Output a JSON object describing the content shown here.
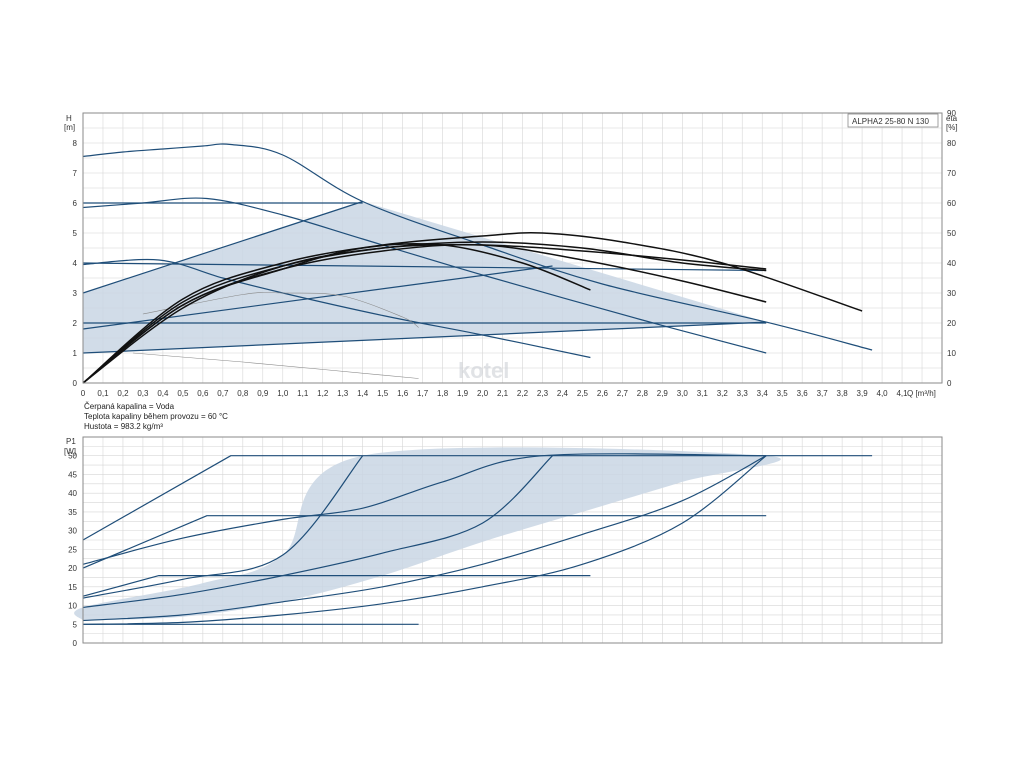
{
  "colors": {
    "line": "#1f4e79",
    "fill": "#c9d6e4",
    "eta": "#111111",
    "grid": "#d6d6d6",
    "frame": "#8a8a8a",
    "thin": "#888888"
  },
  "fluid_info": {
    "line1": "Čerpaná kapalina = Voda",
    "line2": "Teplota kapaliny během provozu = 60 °C",
    "line3": "Hustota = 983.2 kg/m³"
  },
  "watermark": "kotel",
  "chart_data": [
    {
      "type": "line",
      "title": "ALPHA2 25-80 N 130",
      "xlabel": "Q [m³/h]",
      "ylabel_top": "H",
      "ylabel_unit": "[m]",
      "y2label_top": "eta",
      "y2label_unit": "[%]",
      "xlim": [
        0,
        4.3
      ],
      "ylim": [
        0,
        9
      ],
      "y2lim": [
        0,
        90
      ],
      "grid": true,
      "x_ticks": [
        "0",
        "0,1",
        "0,2",
        "0,3",
        "0,4",
        "0,5",
        "0,6",
        "0,7",
        "0,8",
        "0,9",
        "1,0",
        "1,1",
        "1,2",
        "1,3",
        "1,4",
        "1,5",
        "1,6",
        "1,7",
        "1,8",
        "1,9",
        "2,0",
        "2,1",
        "2,2",
        "2,3",
        "2,4",
        "2,5",
        "2,6",
        "2,7",
        "2,8",
        "2,9",
        "3,0",
        "3,1",
        "3,2",
        "3,3",
        "3,4",
        "3,5",
        "3,6",
        "3,7",
        "3,8",
        "3,9",
        "4,0",
        "4,1"
      ],
      "y_ticks": [
        "0",
        "1",
        "2",
        "3",
        "4",
        "5",
        "6",
        "7",
        "8"
      ],
      "y2_ticks": [
        "0",
        "10",
        "20",
        "30",
        "40",
        "50",
        "60",
        "70",
        "80",
        "90"
      ],
      "shaded_region": [
        [
          0,
          1
        ],
        [
          0,
          3
        ],
        [
          1.4,
          6.05
        ],
        [
          3.42,
          2.03
        ],
        [
          0,
          1
        ]
      ],
      "series": [
        {
          "kind": "head",
          "points": [
            [
              0,
              7.55
            ],
            [
              0.2,
              7.7
            ],
            [
              0.4,
              7.8
            ],
            [
              0.6,
              7.9
            ],
            [
              0.74,
              7.95
            ],
            [
              1.0,
              7.6
            ],
            [
              1.4,
              6.05
            ],
            [
              2.0,
              4.6
            ],
            [
              2.6,
              3.3
            ],
            [
              3.42,
              2.03
            ],
            [
              3.95,
              1.1
            ]
          ]
        },
        {
          "kind": "head",
          "points": [
            [
              0,
              5.85
            ],
            [
              0.3,
              6.0
            ],
            [
              0.62,
              6.15
            ],
            [
              1.0,
              5.6
            ],
            [
              1.4,
              4.8
            ],
            [
              2.0,
              3.6
            ],
            [
              2.8,
              2.1
            ],
            [
              3.42,
              1.0
            ]
          ]
        },
        {
          "kind": "head",
          "points": [
            [
              0,
              3.95
            ],
            [
              0.38,
              4.1
            ],
            [
              0.7,
              3.5
            ],
            [
              1.0,
              3.0
            ],
            [
              1.5,
              2.25
            ],
            [
              2.0,
              1.6
            ],
            [
              2.54,
              0.85
            ]
          ]
        },
        {
          "kind": "head",
          "points": [
            [
              0,
              3.0
            ],
            [
              1.4,
              6.05
            ]
          ]
        },
        {
          "kind": "head",
          "points": [
            [
              0,
              1.8
            ],
            [
              2.35,
              3.9
            ]
          ]
        },
        {
          "kind": "head",
          "points": [
            [
              0,
              1.0
            ],
            [
              3.42,
              2.03
            ]
          ]
        },
        {
          "kind": "head",
          "points": [
            [
              0,
              6.0
            ],
            [
              1.4,
              6.0
            ]
          ]
        },
        {
          "kind": "head",
          "points": [
            [
              0,
              4.0
            ],
            [
              3.42,
              3.75
            ]
          ]
        },
        {
          "kind": "head",
          "points": [
            [
              0,
              2.0
            ],
            [
              3.42,
              2.0
            ]
          ]
        },
        {
          "kind": "thin",
          "points": [
            [
              0.3,
              2.3
            ],
            [
              0.8,
              2.95
            ],
            [
              1.0,
              3.0
            ],
            [
              1.3,
              2.9
            ],
            [
              1.6,
              2.2
            ],
            [
              1.68,
              1.85
            ]
          ]
        },
        {
          "kind": "thin",
          "points": [
            [
              0.25,
              1.0
            ],
            [
              0.8,
              0.7
            ],
            [
              1.68,
              0.15
            ]
          ]
        },
        {
          "kind": "eta",
          "points": [
            [
              0,
              0
            ],
            [
              0.5,
              28
            ],
            [
              1.0,
              40
            ],
            [
              1.5,
              46
            ],
            [
              2.0,
              49
            ],
            [
              2.3,
              50
            ],
            [
              2.7,
              47
            ],
            [
              3.2,
              40
            ],
            [
              3.9,
              24
            ]
          ]
        },
        {
          "kind": "eta",
          "points": [
            [
              0,
              0
            ],
            [
              0.5,
              27
            ],
            [
              1.0,
              39
            ],
            [
              1.5,
              45
            ],
            [
              2.0,
              47
            ],
            [
              2.5,
              45
            ],
            [
              3.0,
              40
            ],
            [
              3.42,
              37.5
            ]
          ]
        },
        {
          "kind": "eta",
          "points": [
            [
              0,
              0
            ],
            [
              0.5,
              26
            ],
            [
              1.0,
              38
            ],
            [
              1.5,
              44
            ],
            [
              2.0,
              46
            ],
            [
              2.5,
              41
            ],
            [
              3.0,
              34
            ],
            [
              3.42,
              27
            ]
          ]
        },
        {
          "kind": "eta",
          "points": [
            [
              0,
              0
            ],
            [
              0.5,
              26
            ],
            [
              1.0,
              38
            ],
            [
              1.4,
              45
            ],
            [
              1.8,
              46
            ],
            [
              2.2,
              40
            ],
            [
              2.54,
              31
            ]
          ]
        },
        {
          "kind": "eta",
          "points": [
            [
              0,
              0
            ],
            [
              0.5,
              25
            ],
            [
              1.0,
              39
            ],
            [
              1.5,
              45
            ],
            [
              2.0,
              46
            ],
            [
              2.5,
              44
            ],
            [
              3.0,
              41
            ],
            [
              3.42,
              38
            ]
          ]
        }
      ]
    },
    {
      "type": "line",
      "ylabel_top": "P1",
      "ylabel_unit": "[W]",
      "xlim": [
        0,
        4.3
      ],
      "ylim": [
        0,
        55
      ],
      "grid": true,
      "y_ticks": [
        "0",
        "5",
        "10",
        "15",
        "20",
        "25",
        "30",
        "35",
        "40",
        "45",
        "50"
      ],
      "shaded_region": [
        [
          0,
          6
        ],
        [
          0,
          9.5
        ],
        [
          0.6,
          16
        ],
        [
          1.0,
          23.5
        ],
        [
          1.4,
          50
        ],
        [
          3.42,
          50
        ],
        [
          3.0,
          43
        ],
        [
          2.5,
          35
        ],
        [
          2.0,
          27
        ],
        [
          1.5,
          18
        ],
        [
          1.0,
          11
        ],
        [
          0.5,
          7
        ],
        [
          0,
          6
        ]
      ],
      "series": [
        {
          "kind": "power",
          "points": [
            [
              0,
              27.5
            ],
            [
              0.74,
              50
            ],
            [
              3.95,
              50
            ]
          ]
        },
        {
          "kind": "power",
          "points": [
            [
              0,
              21
            ],
            [
              0.5,
              28
            ],
            [
              1.0,
              33
            ],
            [
              1.4,
              36
            ],
            [
              1.8,
              43
            ],
            [
              2.3,
              50
            ],
            [
              3.42,
              50
            ]
          ]
        },
        {
          "kind": "power",
          "points": [
            [
              0,
              20
            ],
            [
              0.62,
              34
            ],
            [
              3.42,
              34
            ]
          ]
        },
        {
          "kind": "power",
          "points": [
            [
              0,
              12.5
            ],
            [
              0.38,
              18
            ],
            [
              2.54,
              18
            ]
          ]
        },
        {
          "kind": "power",
          "points": [
            [
              0,
              5
            ],
            [
              1.68,
              5
            ]
          ]
        },
        {
          "kind": "power",
          "points": [
            [
              0,
              12
            ],
            [
              0.5,
              17
            ],
            [
              1.0,
              23.5
            ],
            [
              1.4,
              50
            ]
          ]
        },
        {
          "kind": "power",
          "points": [
            [
              0,
              9.5
            ],
            [
              0.5,
              13
            ],
            [
              1.0,
              18
            ],
            [
              1.5,
              24
            ],
            [
              2.0,
              32
            ],
            [
              2.35,
              50
            ]
          ]
        },
        {
          "kind": "power",
          "points": [
            [
              0,
              6
            ],
            [
              0.5,
              7.5
            ],
            [
              1.0,
              11
            ],
            [
              1.5,
              15
            ],
            [
              2.0,
              21
            ],
            [
              2.5,
              29
            ],
            [
              3.0,
              38
            ],
            [
              3.42,
              50
            ]
          ]
        },
        {
          "kind": "power",
          "points": [
            [
              0,
              5
            ],
            [
              0.5,
              5.5
            ],
            [
              1.0,
              7.5
            ],
            [
              1.5,
              10.5
            ],
            [
              2.0,
              15
            ],
            [
              2.5,
              21
            ],
            [
              3.0,
              32
            ],
            [
              3.42,
              50
            ]
          ]
        }
      ]
    }
  ]
}
